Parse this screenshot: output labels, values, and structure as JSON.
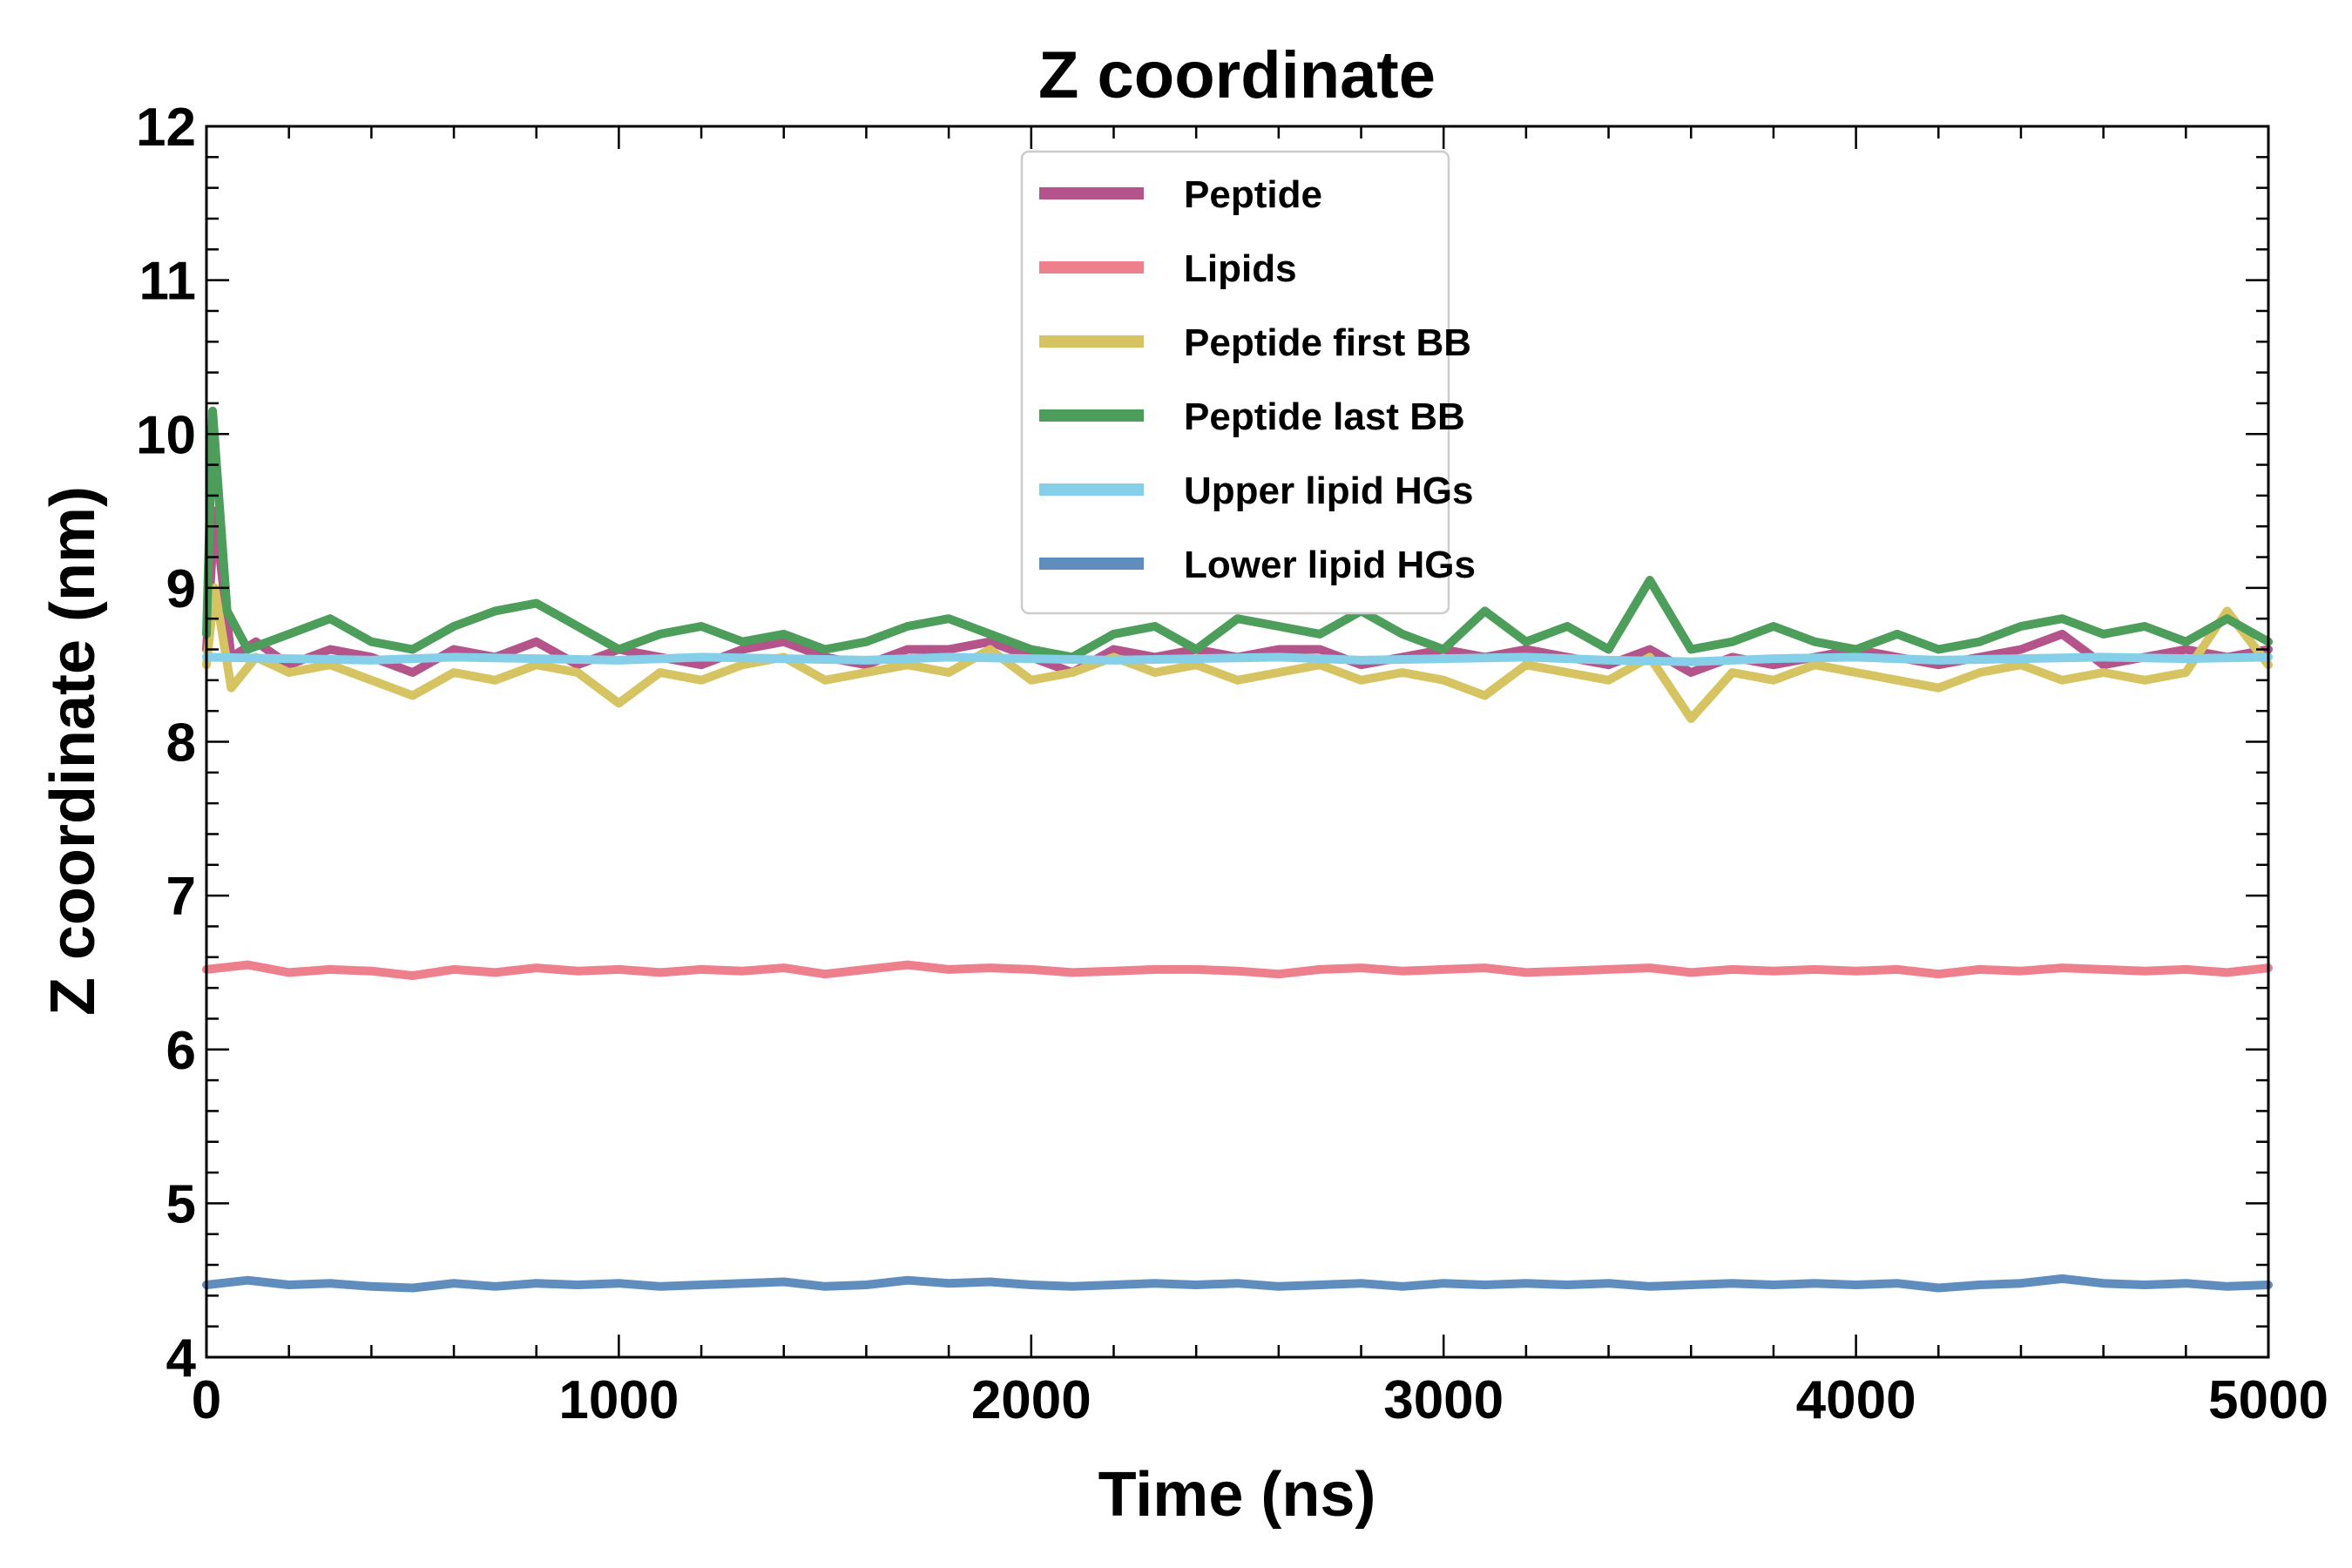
{
  "chart_data": {
    "type": "line",
    "title": "Z coordinate",
    "xlabel": "Time (ns)",
    "ylabel": "Z coordinate (nm)",
    "xlim": [
      0,
      5000
    ],
    "ylim": [
      4,
      12
    ],
    "xticks": [
      0,
      1000,
      2000,
      3000,
      4000,
      5000
    ],
    "yticks": [
      4,
      5,
      6,
      7,
      8,
      9,
      10,
      11,
      12
    ],
    "legend_position": "top-center",
    "grid": false,
    "series": [
      {
        "name": "Peptide",
        "color": "#b5548a",
        "x": [
          0,
          20,
          60,
          120,
          200,
          300,
          400,
          500,
          600,
          700,
          800,
          900,
          1000,
          1100,
          1200,
          1300,
          1400,
          1500,
          1600,
          1700,
          1800,
          1900,
          2000,
          2100,
          2200,
          2300,
          2400,
          2500,
          2600,
          2700,
          2800,
          2900,
          3000,
          3100,
          3200,
          3300,
          3400,
          3500,
          3600,
          3700,
          3800,
          3900,
          4000,
          4100,
          4200,
          4300,
          4400,
          4500,
          4600,
          4700,
          4800,
          4900,
          5000
        ],
        "y": [
          8.6,
          9.5,
          8.55,
          8.65,
          8.5,
          8.6,
          8.55,
          8.45,
          8.6,
          8.55,
          8.65,
          8.5,
          8.6,
          8.55,
          8.5,
          8.6,
          8.65,
          8.55,
          8.5,
          8.6,
          8.6,
          8.65,
          8.55,
          8.45,
          8.6,
          8.55,
          8.6,
          8.55,
          8.6,
          8.6,
          8.5,
          8.55,
          8.6,
          8.55,
          8.6,
          8.55,
          8.5,
          8.6,
          8.45,
          8.55,
          8.5,
          8.55,
          8.6,
          8.55,
          8.5,
          8.55,
          8.6,
          8.7,
          8.5,
          8.55,
          8.6,
          8.55,
          8.6
        ]
      },
      {
        "name": "Lipids",
        "color": "#ee7f8d",
        "x": [
          0,
          100,
          200,
          300,
          400,
          500,
          600,
          700,
          800,
          900,
          1000,
          1100,
          1200,
          1300,
          1400,
          1500,
          1600,
          1700,
          1800,
          1900,
          2000,
          2100,
          2200,
          2300,
          2400,
          2500,
          2600,
          2700,
          2800,
          2900,
          3000,
          3100,
          3200,
          3300,
          3400,
          3500,
          3600,
          3700,
          3800,
          3900,
          4000,
          4100,
          4200,
          4300,
          4400,
          4500,
          4600,
          4700,
          4800,
          4900,
          5000
        ],
        "y": [
          6.52,
          6.55,
          6.5,
          6.52,
          6.51,
          6.48,
          6.52,
          6.5,
          6.53,
          6.51,
          6.52,
          6.5,
          6.52,
          6.51,
          6.53,
          6.49,
          6.52,
          6.55,
          6.52,
          6.53,
          6.52,
          6.5,
          6.51,
          6.52,
          6.52,
          6.51,
          6.49,
          6.52,
          6.53,
          6.51,
          6.52,
          6.53,
          6.5,
          6.51,
          6.52,
          6.53,
          6.5,
          6.52,
          6.51,
          6.52,
          6.51,
          6.52,
          6.49,
          6.52,
          6.51,
          6.53,
          6.52,
          6.51,
          6.52,
          6.5,
          6.53
        ]
      },
      {
        "name": "Peptide first BB",
        "color": "#d6c361",
        "x": [
          0,
          20,
          60,
          120,
          200,
          300,
          400,
          500,
          600,
          700,
          800,
          900,
          1000,
          1100,
          1200,
          1300,
          1400,
          1500,
          1600,
          1700,
          1800,
          1900,
          2000,
          2100,
          2200,
          2300,
          2400,
          2500,
          2600,
          2700,
          2800,
          2900,
          3000,
          3100,
          3200,
          3300,
          3400,
          3500,
          3600,
          3700,
          3800,
          3900,
          4000,
          4100,
          4200,
          4300,
          4400,
          4500,
          4600,
          4700,
          4800,
          4900,
          5000
        ],
        "y": [
          8.5,
          9.0,
          8.35,
          8.55,
          8.45,
          8.5,
          8.4,
          8.3,
          8.45,
          8.4,
          8.5,
          8.45,
          8.25,
          8.45,
          8.4,
          8.5,
          8.55,
          8.4,
          8.45,
          8.5,
          8.45,
          8.6,
          8.4,
          8.45,
          8.55,
          8.45,
          8.5,
          8.4,
          8.45,
          8.5,
          8.4,
          8.45,
          8.4,
          8.3,
          8.5,
          8.45,
          8.4,
          8.55,
          8.15,
          8.45,
          8.4,
          8.5,
          8.45,
          8.4,
          8.35,
          8.45,
          8.5,
          8.4,
          8.45,
          8.4,
          8.45,
          8.85,
          8.5
        ]
      },
      {
        "name": "Peptide last BB",
        "color": "#4c9e5a",
        "x": [
          0,
          15,
          50,
          100,
          200,
          300,
          400,
          500,
          600,
          700,
          800,
          900,
          1000,
          1100,
          1200,
          1300,
          1400,
          1500,
          1600,
          1700,
          1800,
          1900,
          2000,
          2100,
          2200,
          2300,
          2400,
          2500,
          2600,
          2700,
          2800,
          2900,
          3000,
          3100,
          3200,
          3300,
          3400,
          3500,
          3600,
          3700,
          3800,
          3900,
          4000,
          4100,
          4200,
          4300,
          4400,
          4500,
          4600,
          4700,
          4800,
          4900,
          5000
        ],
        "y": [
          8.7,
          10.15,
          8.85,
          8.6,
          8.7,
          8.8,
          8.65,
          8.6,
          8.75,
          8.85,
          8.9,
          8.75,
          8.6,
          8.7,
          8.75,
          8.65,
          8.7,
          8.6,
          8.65,
          8.75,
          8.8,
          8.7,
          8.6,
          8.55,
          8.7,
          8.75,
          8.6,
          8.8,
          8.75,
          8.7,
          8.85,
          8.7,
          8.6,
          8.85,
          8.65,
          8.75,
          8.6,
          9.05,
          8.6,
          8.65,
          8.75,
          8.65,
          8.6,
          8.7,
          8.6,
          8.65,
          8.75,
          8.8,
          8.7,
          8.75,
          8.65,
          8.8,
          8.65
        ]
      },
      {
        "name": "Upper lipid HGs",
        "color": "#86cfe8",
        "x": [
          0,
          200,
          400,
          600,
          800,
          1000,
          1200,
          1400,
          1600,
          1800,
          2000,
          2200,
          2400,
          2600,
          2800,
          3000,
          3200,
          3400,
          3600,
          3800,
          4000,
          4200,
          4400,
          4600,
          4800,
          5000
        ],
        "y": [
          8.55,
          8.54,
          8.53,
          8.55,
          8.54,
          8.53,
          8.55,
          8.54,
          8.53,
          8.55,
          8.54,
          8.53,
          8.54,
          8.55,
          8.53,
          8.54,
          8.55,
          8.53,
          8.52,
          8.54,
          8.55,
          8.53,
          8.54,
          8.55,
          8.54,
          8.55
        ]
      },
      {
        "name": "Lower lipid HGs",
        "color": "#5f8dbd",
        "x": [
          0,
          100,
          200,
          300,
          400,
          500,
          600,
          700,
          800,
          900,
          1000,
          1100,
          1200,
          1300,
          1400,
          1500,
          1600,
          1700,
          1800,
          1900,
          2000,
          2100,
          2200,
          2300,
          2400,
          2500,
          2600,
          2700,
          2800,
          2900,
          3000,
          3100,
          3200,
          3300,
          3400,
          3500,
          3600,
          3700,
          3800,
          3900,
          4000,
          4100,
          4200,
          4300,
          4400,
          4500,
          4600,
          4700,
          4800,
          4900,
          5000
        ],
        "y": [
          4.47,
          4.5,
          4.47,
          4.48,
          4.46,
          4.45,
          4.48,
          4.46,
          4.48,
          4.47,
          4.48,
          4.46,
          4.47,
          4.48,
          4.49,
          4.46,
          4.47,
          4.5,
          4.48,
          4.49,
          4.47,
          4.46,
          4.47,
          4.48,
          4.47,
          4.48,
          4.46,
          4.47,
          4.48,
          4.46,
          4.48,
          4.47,
          4.48,
          4.47,
          4.48,
          4.46,
          4.47,
          4.48,
          4.47,
          4.48,
          4.47,
          4.48,
          4.45,
          4.47,
          4.48,
          4.51,
          4.48,
          4.47,
          4.48,
          4.46,
          4.47
        ]
      }
    ]
  }
}
